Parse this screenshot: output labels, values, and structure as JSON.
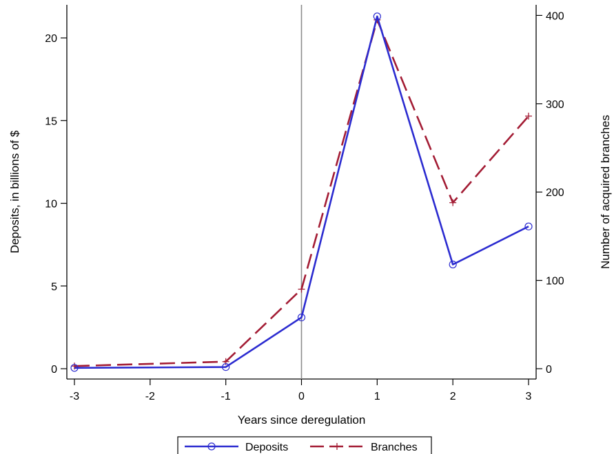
{
  "chart_data": {
    "type": "line",
    "x": [
      -3,
      -1,
      0,
      1,
      2,
      3
    ],
    "xlabel": "Years since deregulation",
    "ylabel": "Deposits, in billions of $",
    "y2label": "Number of acquired branches",
    "xlim": [
      -3,
      3
    ],
    "ylim": [
      0,
      22
    ],
    "y2lim": [
      0,
      412
    ],
    "xticks": [
      -3,
      -2,
      -1,
      0,
      1,
      2,
      3
    ],
    "yticks": [
      0,
      5,
      10,
      15,
      20
    ],
    "y2ticks": [
      0,
      100,
      200,
      300,
      400
    ],
    "reference_line_x": 0,
    "grid": false,
    "legend_position": "bottom",
    "series": [
      {
        "name": "Deposits",
        "axis": "left",
        "values": [
          0.05,
          0.1,
          3.1,
          21.3,
          6.3,
          8.6
        ],
        "color": "#2b2bd0",
        "marker": "circle",
        "line_style": "solid"
      },
      {
        "name": "Branches",
        "axis": "right",
        "values": [
          3,
          8,
          90,
          395,
          188,
          286
        ],
        "color": "#a31c34",
        "marker": "plus",
        "line_style": "dashed"
      }
    ]
  },
  "colors": {
    "reference_line": "#8c8c8c",
    "axis": "#000000"
  }
}
